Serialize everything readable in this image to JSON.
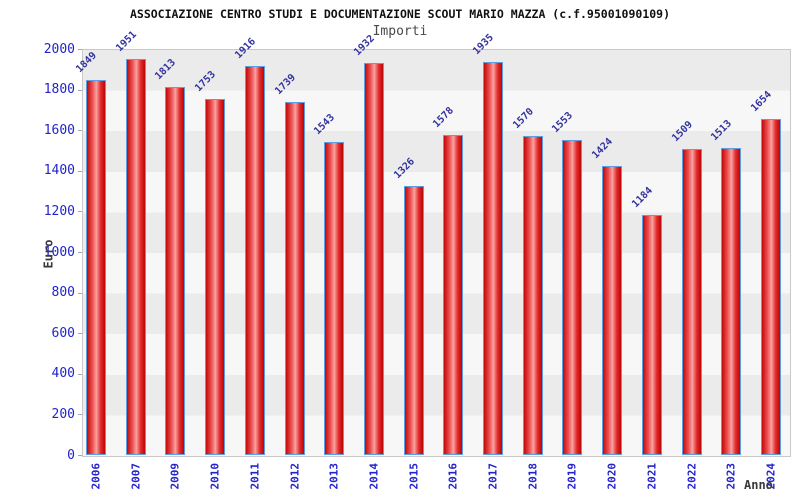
{
  "header": {
    "title": "ASSOCIAZIONE CENTRO STUDI E DOCUMENTAZIONE SCOUT MARIO MAZZA (c.f.95001090109)",
    "subtitle": "Importi"
  },
  "axes": {
    "x_label": "Anno",
    "y_label": "Euro",
    "y_ticks": [
      0,
      200,
      400,
      600,
      800,
      1000,
      1200,
      1400,
      1600,
      1800,
      2000
    ]
  },
  "chart_data": {
    "type": "bar",
    "title": "Importi",
    "xlabel": "Anno",
    "ylabel": "Euro",
    "ylim": [
      0,
      2000
    ],
    "grid": "alternating-horizontal-bands",
    "legend": "none",
    "categories": [
      "2006",
      "2007",
      "2009",
      "2010",
      "2011",
      "2012",
      "2013",
      "2014",
      "2015",
      "2016",
      "2017",
      "2018",
      "2019",
      "2020",
      "2021",
      "2022",
      "2023",
      "2024"
    ],
    "values": [
      1849,
      1951,
      1813,
      1753,
      1916,
      1739,
      1543,
      1932,
      1326,
      1578,
      1935,
      1570,
      1553,
      1424,
      1184,
      1509,
      1513,
      1654
    ],
    "bar_labels": [
      "1849",
      "1951",
      "1813",
      "1753",
      "1916",
      "1739",
      "1543",
      "1932",
      "1326",
      "1578",
      "1935",
      "1570",
      "1553",
      "1424",
      "1184",
      "1509",
      "1513",
      "1654"
    ]
  },
  "colors": {
    "bar_fill_dark": "#c40808",
    "bar_fill_light": "#f9a2a2",
    "bar_border": "#5e9de0",
    "tick_label_blue": "#2323cc",
    "value_label_blue": "#34349e",
    "band_gray": "#ebebeb",
    "band_light": "#f7f7f7",
    "plot_border": "#c9c9c9",
    "title_color": "#111111",
    "subtitle_color": "#4a4a4a",
    "axis_title_color": "#3a3a3a"
  }
}
